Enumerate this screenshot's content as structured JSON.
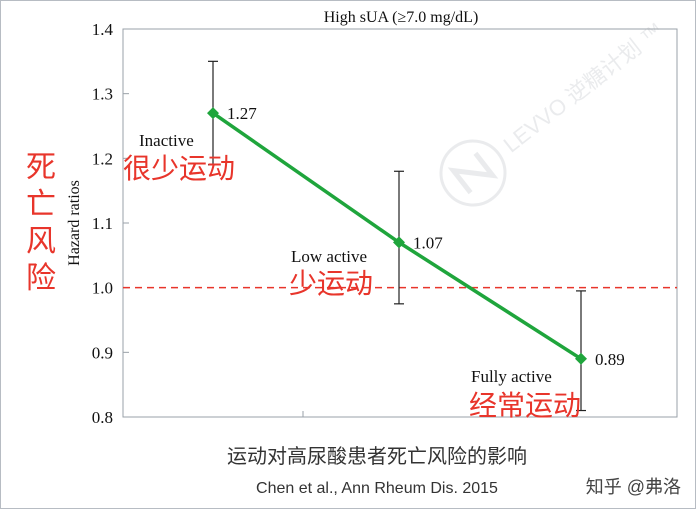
{
  "chart_data": {
    "type": "line",
    "title": "High sUA (≥7.0 mg/dL)",
    "xlabel": "",
    "ylabel": "Hazard ratios",
    "ylim": [
      0.8,
      1.4
    ],
    "yticks": [
      "0.8",
      "0.9",
      "1.0",
      "1.1",
      "1.2",
      "1.3",
      "1.4"
    ],
    "categories": [
      "Inactive",
      "Low active",
      "Fully active"
    ],
    "categories_cn": [
      "很少运动",
      "少运动",
      "经常运动"
    ],
    "values": [
      1.27,
      1.07,
      0.89
    ],
    "value_labels": [
      "1.27",
      "1.07",
      "0.89"
    ],
    "error_low": [
      1.19,
      0.975,
      0.81
    ],
    "error_high": [
      1.35,
      1.18,
      0.995
    ],
    "reference_line": 1.0,
    "ylabel_cn": "死亡风险",
    "line_color": "#1fa53c",
    "reference_color": "#e8352b",
    "annotation_color": "#e8352b",
    "grid": false,
    "legend": "none"
  },
  "caption": "运动对高尿酸患者死亡风险的影响",
  "citation": "Chen et al., Ann Rheum Dis. 2015",
  "watermark": "LEVVO 逆糖计划 ™",
  "attribution": "知乎 @弗洛"
}
